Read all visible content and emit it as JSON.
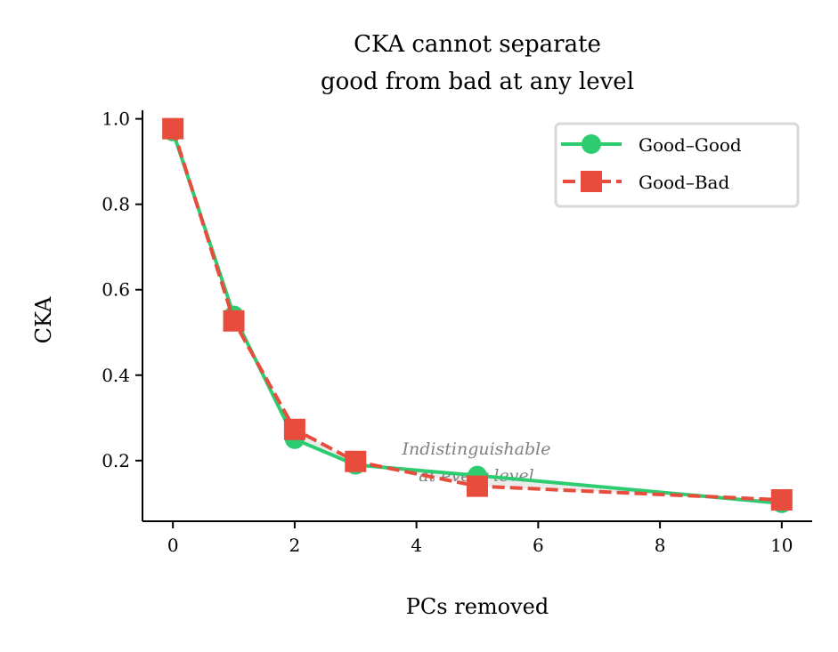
{
  "chart_data": {
    "type": "line",
    "title_lines": [
      "CKA cannot separate",
      "good from bad at any level"
    ],
    "xlabel": "PCs removed",
    "ylabel": "CKA",
    "xlim": [
      -0.5,
      10.5
    ],
    "ylim": [
      0.058,
      1.02
    ],
    "xticks": [
      0,
      2,
      4,
      6,
      8,
      10
    ],
    "yticks": [
      0.2,
      0.4,
      0.6,
      0.8,
      1.0
    ],
    "ytick_labels": [
      "0.2",
      "0.4",
      "0.6",
      "0.8",
      "1.0"
    ],
    "grid": false,
    "legend_placement": "top-right",
    "x": [
      0,
      1,
      2,
      3,
      5,
      10
    ],
    "series": [
      {
        "name": "Good–Good",
        "values": [
          0.97,
          0.54,
          0.25,
          0.19,
          0.165,
          0.1
        ],
        "color": "#2ecc71",
        "marker": "circle",
        "linestyle": "solid"
      },
      {
        "name": "Good–Bad",
        "values": [
          0.977,
          0.527,
          0.273,
          0.198,
          0.14,
          0.108
        ],
        "color": "#e74c3c",
        "marker": "square",
        "linestyle": "dashed"
      }
    ],
    "shaded_band_color": "#dddddd",
    "annotation": {
      "lines": [
        "Indistinguishable",
        "at every level"
      ],
      "x": 5,
      "y": 0.19,
      "color": "#808080"
    }
  }
}
